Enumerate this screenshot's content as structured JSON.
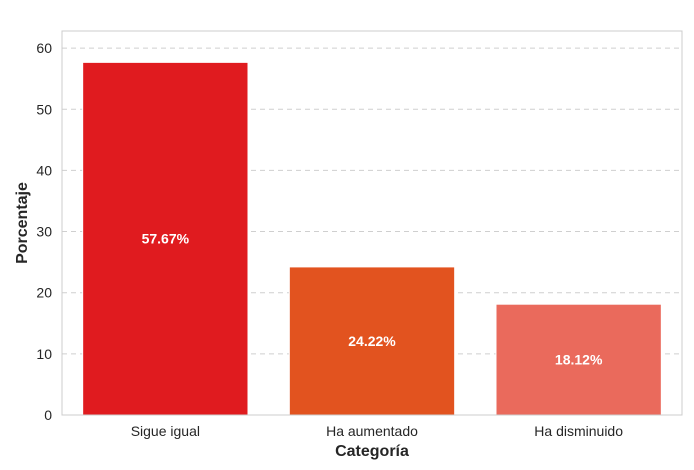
{
  "chart_data": {
    "type": "bar",
    "title": "",
    "xlabel": "Categoría",
    "ylabel": "Porcentaje",
    "categories": [
      "Sigue igual",
      "Ha aumentado",
      "Ha disminuido"
    ],
    "values": [
      57.67,
      24.22,
      18.12
    ],
    "value_labels": [
      "57.67%",
      "24.22%",
      "18.12%"
    ],
    "colors": [
      "#e01b1f",
      "#e2531f",
      "#ea6a5c"
    ],
    "ylim": [
      0,
      62.8
    ],
    "yticks": [
      0,
      10,
      20,
      30,
      40,
      50,
      60
    ],
    "grid": true,
    "legend": false
  }
}
